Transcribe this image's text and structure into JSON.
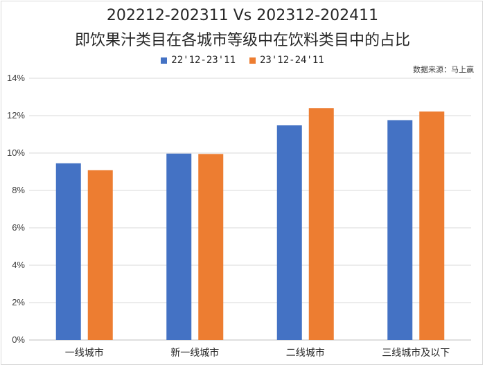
{
  "chart_data": {
    "type": "bar",
    "title": "202212-202311 Vs 202312-202411",
    "subtitle": "即饮果汁类目在各城市等级中在饮料类目中的占比",
    "source": "数据来源：马上赢",
    "categories": [
      "一线城市",
      "新一线城市",
      "二线城市",
      "三线城市及以下"
    ],
    "series": [
      {
        "name": "22'12-23'11",
        "color": "#4472C4",
        "values": [
          9.45,
          9.97,
          11.48,
          11.76
        ]
      },
      {
        "name": "23'12-24'11",
        "color": "#ED7D31",
        "values": [
          9.08,
          9.95,
          12.4,
          12.22
        ]
      }
    ],
    "ylim": [
      0,
      14
    ],
    "yticks": [
      "0%",
      "2%",
      "4%",
      "6%",
      "8%",
      "10%",
      "12%",
      "14%"
    ],
    "ytick_values": [
      0,
      2,
      4,
      6,
      8,
      10,
      12,
      14
    ],
    "grid": true,
    "legend_position": "top-center"
  }
}
